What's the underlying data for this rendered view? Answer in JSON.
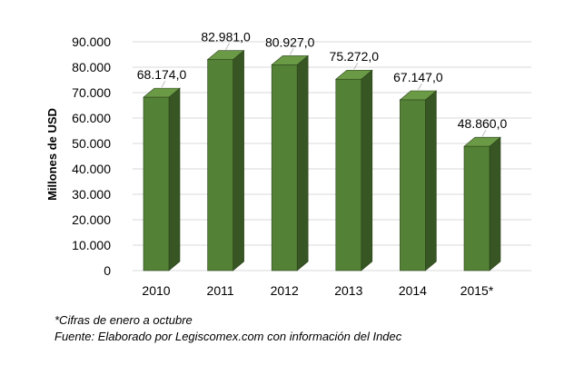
{
  "chart_data": {
    "type": "bar",
    "style": "3d-column",
    "categories": [
      "2010",
      "2011",
      "2012",
      "2013",
      "2014",
      "2015*"
    ],
    "values": [
      68174.0,
      82981.0,
      80927.0,
      75272.0,
      67147.0,
      48860.0
    ],
    "data_labels": [
      "68.174,0",
      "82.981,0",
      "80.927,0",
      "75.272,0",
      "67.147,0",
      "48.860,0"
    ],
    "ylabel": "Millones de USD",
    "xlabel": "",
    "title": "",
    "ylim": [
      0,
      90000
    ],
    "yticks": [
      0,
      10000,
      20000,
      30000,
      40000,
      50000,
      60000,
      70000,
      80000,
      90000
    ],
    "ytick_labels": [
      "0",
      "10.000",
      "20.000",
      "30.000",
      "40.000",
      "50.000",
      "60.000",
      "70.000",
      "80.000",
      "90.000"
    ],
    "grid": true,
    "legend": "none",
    "colors": {
      "bar_front": "#538135",
      "bar_side": "#375623",
      "bar_top": "#6a9a45",
      "grid": "#d9d9d9"
    }
  },
  "notes": {
    "footnote": "*Cifras de enero a octubre",
    "source": "Fuente: Elaborado por Legiscomex.com con información del Indec"
  }
}
